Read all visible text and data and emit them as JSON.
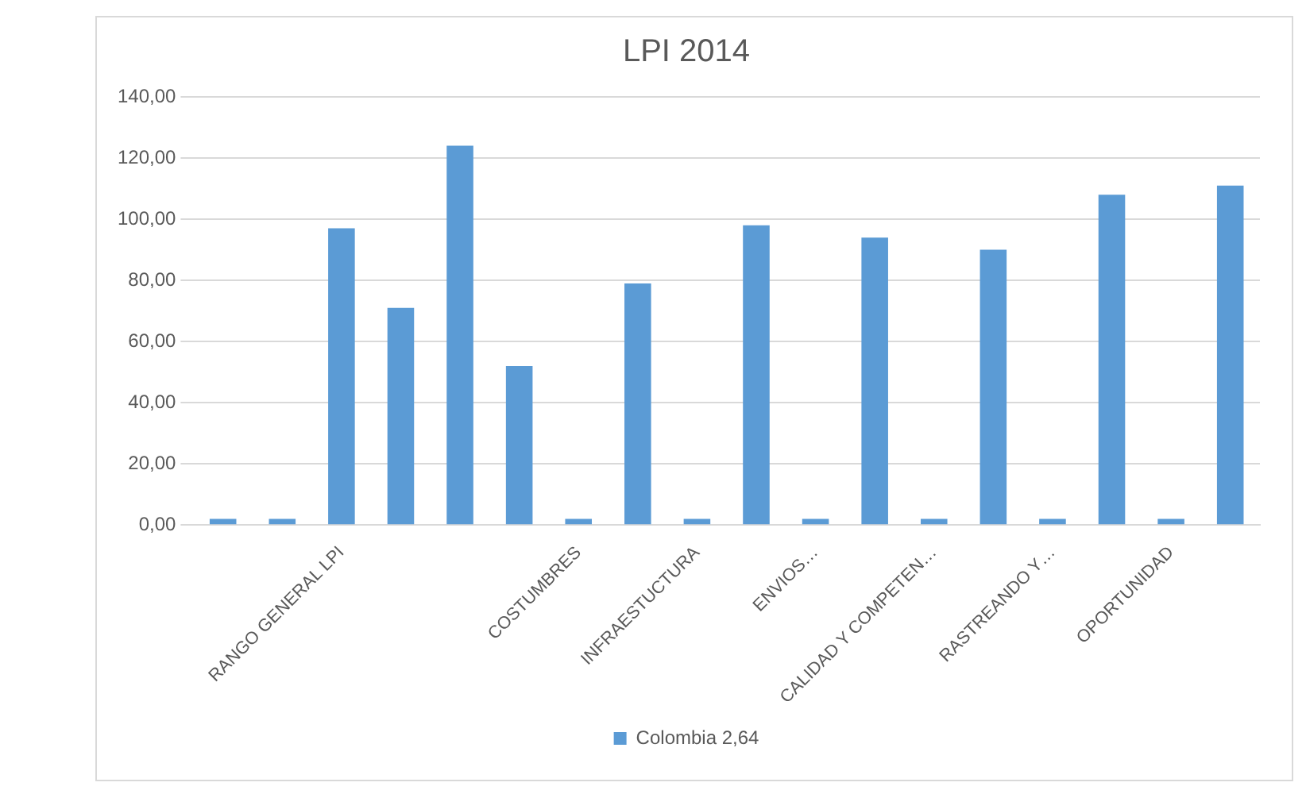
{
  "chart_data": {
    "type": "bar",
    "title": "LPI 2014",
    "categories": [
      null,
      null,
      "RANGO GENERAL LPI",
      null,
      null,
      null,
      "COSTUMBRES",
      null,
      "INFRAESTUCTURA",
      null,
      "ENVIOS…",
      null,
      "CALIDAD Y COMPETEN…",
      null,
      "RASTREANDO Y…",
      null,
      "OPORTUNIDAD",
      null
    ],
    "series": [
      {
        "name": "Colombia 2,64",
        "color": "#5b9bd5",
        "values": [
          2,
          2,
          97,
          71,
          124,
          52,
          2,
          79,
          2,
          98,
          2,
          94,
          2,
          90,
          2,
          108,
          2,
          111
        ]
      }
    ],
    "ylim": [
      0,
      140
    ],
    "yticks": [
      {
        "value": 0,
        "label": "0,00"
      },
      {
        "value": 20,
        "label": "20,00"
      },
      {
        "value": 40,
        "label": "40,00"
      },
      {
        "value": 60,
        "label": "60,00"
      },
      {
        "value": 80,
        "label": "80,00"
      },
      {
        "value": 100,
        "label": "100,00"
      },
      {
        "value": 120,
        "label": "120,00"
      },
      {
        "value": 140,
        "label": "140,00"
      }
    ],
    "grid": "y",
    "legend": "bottom"
  }
}
